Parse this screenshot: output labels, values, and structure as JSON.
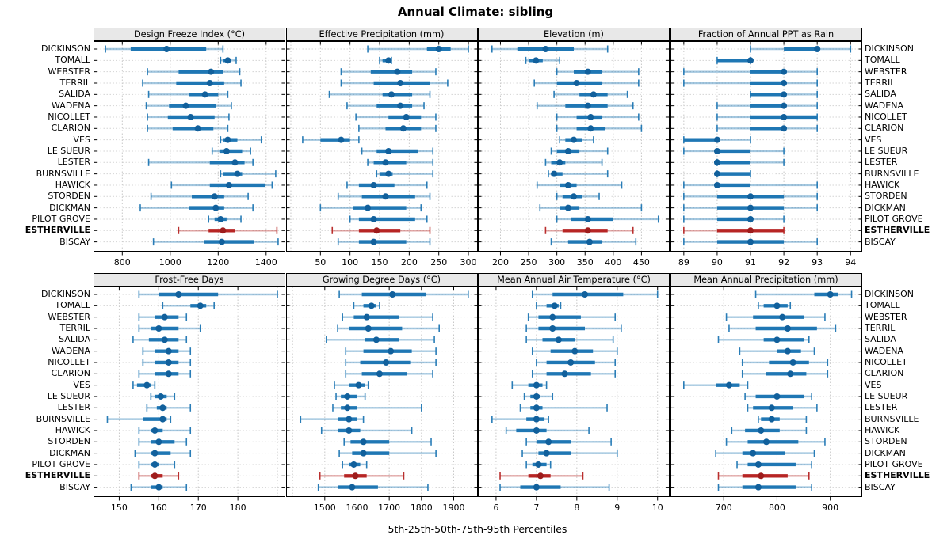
{
  "title": "Annual Climate: sibling",
  "caption": "5th-25th-50th-75th-95th Percentiles",
  "colors": {
    "blue": "#1f77b4",
    "blue_dot": "#11609c",
    "red": "#b72524",
    "red_dot": "#9e1c1c",
    "header_bg": "#e8e8e8",
    "grid": "#c8c8c8",
    "frame": "#000000"
  },
  "stations": [
    "DICKINSON",
    "TOMALL",
    "WEBSTER",
    "TERRIL",
    "SALIDA",
    "WADENA",
    "NICOLLET",
    "CLARION",
    "VES",
    "LE SUEUR",
    "LESTER",
    "BURNSVILLE",
    "HAWICK",
    "STORDEN",
    "DICKMAN",
    "PILOT GROVE",
    "ESTHERVILLE",
    "BISCAY"
  ],
  "highlight_station": "ESTHERVILLE",
  "highlight_index": 16,
  "chart_data": {
    "type": "scatter",
    "subtype": "percentile-interval-dotplot",
    "percentiles": [
      5,
      25,
      50,
      75,
      95
    ],
    "grid": "dotted",
    "legend_position": "none",
    "panels": [
      {
        "title": "Design Freeze Index (°C)",
        "ticks": [
          800,
          1000,
          1200,
          1400
        ],
        "grid_extra": [],
        "xlim": [
          680,
          1480
        ],
        "values": [
          [
            730,
            835,
            985,
            1150,
            1220
          ],
          [
            1210,
            1220,
            1240,
            1255,
            1275
          ],
          [
            905,
            1035,
            1170,
            1220,
            1290
          ],
          [
            885,
            1025,
            1165,
            1225,
            1295
          ],
          [
            910,
            1080,
            1145,
            1200,
            1240
          ],
          [
            900,
            995,
            1065,
            1190,
            1255
          ],
          [
            905,
            990,
            1085,
            1185,
            1245
          ],
          [
            905,
            1010,
            1115,
            1180,
            1240
          ],
          [
            1210,
            1220,
            1240,
            1280,
            1380
          ],
          [
            1175,
            1205,
            1235,
            1300,
            1335
          ],
          [
            910,
            1165,
            1270,
            1310,
            1345
          ],
          [
            1210,
            1220,
            1280,
            1300,
            1440
          ],
          [
            1005,
            1165,
            1245,
            1395,
            1425
          ],
          [
            920,
            1090,
            1185,
            1225,
            1325
          ],
          [
            875,
            1080,
            1190,
            1225,
            1345
          ],
          [
            1160,
            1185,
            1210,
            1235,
            1295
          ],
          [
            1035,
            1160,
            1220,
            1270,
            1445
          ],
          [
            930,
            1140,
            1215,
            1350,
            1450
          ]
        ]
      },
      {
        "title": "Effective Precipitation (mm)",
        "ticks": [
          50,
          100,
          150,
          200,
          250,
          300
        ],
        "grid_extra": [
          0
        ],
        "xlim": [
          -8,
          316
        ],
        "values": [
          [
            130,
            230,
            250,
            270,
            300
          ],
          [
            150,
            155,
            165,
            168,
            170
          ],
          [
            85,
            135,
            180,
            205,
            245
          ],
          [
            85,
            140,
            185,
            235,
            265
          ],
          [
            65,
            155,
            170,
            205,
            235
          ],
          [
            95,
            145,
            185,
            205,
            225
          ],
          [
            110,
            165,
            195,
            220,
            245
          ],
          [
            115,
            160,
            190,
            220,
            245
          ],
          [
            20,
            50,
            85,
            100,
            115
          ],
          [
            120,
            145,
            165,
            215,
            240
          ],
          [
            130,
            140,
            160,
            195,
            240
          ],
          [
            145,
            150,
            165,
            172,
            240
          ],
          [
            95,
            115,
            140,
            175,
            230
          ],
          [
            80,
            120,
            160,
            210,
            235
          ],
          [
            50,
            105,
            130,
            195,
            220
          ],
          [
            100,
            115,
            140,
            210,
            230
          ],
          [
            70,
            115,
            145,
            185,
            235
          ],
          [
            80,
            115,
            140,
            195,
            235
          ]
        ]
      },
      {
        "title": "Elevation (m)",
        "ticks": [
          200,
          250,
          300,
          350,
          400,
          450
        ],
        "grid_extra": [],
        "xlim": [
          160,
          500
        ],
        "values": [
          [
            185,
            230,
            280,
            330,
            390
          ],
          [
            245,
            250,
            263,
            275,
            305
          ],
          [
            300,
            330,
            355,
            380,
            445
          ],
          [
            260,
            300,
            335,
            380,
            445
          ],
          [
            295,
            340,
            365,
            390,
            425
          ],
          [
            265,
            315,
            355,
            390,
            435
          ],
          [
            300,
            335,
            360,
            380,
            445
          ],
          [
            300,
            335,
            360,
            385,
            450
          ],
          [
            305,
            315,
            330,
            345,
            365
          ],
          [
            290,
            300,
            320,
            340,
            390
          ],
          [
            280,
            290,
            305,
            315,
            380
          ],
          [
            285,
            290,
            295,
            310,
            390
          ],
          [
            265,
            305,
            320,
            335,
            415
          ],
          [
            300,
            310,
            330,
            345,
            375
          ],
          [
            270,
            305,
            320,
            340,
            450
          ],
          [
            300,
            325,
            355,
            400,
            480
          ],
          [
            280,
            310,
            355,
            390,
            435
          ],
          [
            290,
            320,
            358,
            380,
            440
          ]
        ]
      },
      {
        "title": "Fraction of Annual PPT as Rain",
        "ticks": [
          89,
          90,
          91,
          92,
          93,
          94
        ],
        "grid_extra": [],
        "xlim": [
          88.6,
          94.35
        ],
        "values": [
          [
            91,
            92,
            93,
            93,
            94
          ],
          [
            90,
            90,
            91,
            91,
            91
          ],
          [
            89,
            91,
            92,
            92,
            93
          ],
          [
            89,
            91,
            92,
            92,
            93
          ],
          [
            91,
            91,
            92,
            92,
            93
          ],
          [
            90,
            91,
            92,
            92,
            93
          ],
          [
            90,
            91,
            92,
            93,
            93
          ],
          [
            90,
            91,
            92,
            92,
            93
          ],
          [
            89,
            89,
            90,
            90,
            91
          ],
          [
            89,
            90,
            90,
            91,
            92
          ],
          [
            90,
            90,
            90,
            91,
            92
          ],
          [
            90,
            90,
            90,
            91,
            91
          ],
          [
            89,
            90,
            90,
            91,
            93
          ],
          [
            89,
            90,
            91,
            92,
            93
          ],
          [
            89,
            90,
            91,
            92,
            93
          ],
          [
            89,
            90,
            91,
            91,
            92
          ],
          [
            89,
            90,
            91,
            92,
            92
          ],
          [
            89,
            90,
            91,
            92,
            93
          ]
        ]
      },
      {
        "title": "Frost-Free Days",
        "ticks": [
          150,
          160,
          170,
          180
        ],
        "grid_extra": [
          190
        ],
        "xlim": [
          143.5,
          192
        ],
        "values": [
          [
            155,
            160,
            165,
            175,
            190
          ],
          [
            161,
            168,
            170.5,
            172,
            174
          ],
          [
            155,
            159,
            161.5,
            165,
            167
          ],
          [
            155,
            158,
            160,
            165,
            170.5
          ],
          [
            153.5,
            157.5,
            161.5,
            165,
            167
          ],
          [
            156,
            159,
            162.5,
            165,
            168
          ],
          [
            156,
            159,
            162.5,
            165,
            168
          ],
          [
            155,
            159,
            162.5,
            165,
            168
          ],
          [
            153.5,
            154.5,
            157,
            158,
            159
          ],
          [
            158,
            159,
            160.5,
            162,
            164
          ],
          [
            157,
            159.5,
            161,
            162,
            168
          ],
          [
            147,
            156,
            161,
            162,
            163
          ],
          [
            155,
            158,
            159,
            161,
            168
          ],
          [
            155,
            158,
            160,
            164,
            167
          ],
          [
            154,
            158,
            159,
            163,
            168
          ],
          [
            155,
            158,
            159,
            160,
            164
          ],
          [
            155,
            158,
            159,
            161,
            165
          ],
          [
            153,
            158,
            160,
            161,
            167
          ]
        ]
      },
      {
        "title": "Growing Degree Days (°C)",
        "ticks": [
          1500,
          1600,
          1700,
          1800,
          1900
        ],
        "grid_extra": [
          1400
        ],
        "xlim": [
          1380,
          1975
        ],
        "values": [
          [
            1545,
            1615,
            1710,
            1815,
            1945
          ],
          [
            1590,
            1620,
            1645,
            1660,
            1670
          ],
          [
            1555,
            1590,
            1630,
            1730,
            1835
          ],
          [
            1540,
            1575,
            1635,
            1740,
            1855
          ],
          [
            1505,
            1625,
            1660,
            1730,
            1840
          ],
          [
            1565,
            1620,
            1705,
            1770,
            1845
          ],
          [
            1565,
            1610,
            1690,
            1765,
            1845
          ],
          [
            1565,
            1615,
            1670,
            1755,
            1835
          ],
          [
            1530,
            1575,
            1605,
            1625,
            1635
          ],
          [
            1535,
            1550,
            1570,
            1600,
            1625
          ],
          [
            1525,
            1550,
            1570,
            1600,
            1800
          ],
          [
            1425,
            1540,
            1575,
            1600,
            1620
          ],
          [
            1490,
            1540,
            1575,
            1610,
            1770
          ],
          [
            1560,
            1580,
            1620,
            1700,
            1830
          ],
          [
            1545,
            1585,
            1620,
            1700,
            1845
          ],
          [
            1555,
            1575,
            1590,
            1610,
            1630
          ],
          [
            1485,
            1560,
            1595,
            1630,
            1745
          ],
          [
            1480,
            1540,
            1585,
            1665,
            1820
          ]
        ]
      },
      {
        "title": "Mean Annual Air Temperature (°C)",
        "ticks": [
          6,
          7,
          8,
          9,
          10
        ],
        "grid_extra": [],
        "xlim": [
          5.55,
          10.3
        ],
        "values": [
          [
            6.9,
            7.4,
            8.2,
            9.15,
            10.0
          ],
          [
            7.0,
            7.25,
            7.45,
            7.55,
            7.6
          ],
          [
            6.8,
            7.05,
            7.4,
            8.1,
            8.95
          ],
          [
            6.75,
            7.05,
            7.4,
            8.2,
            9.1
          ],
          [
            6.75,
            7.15,
            7.55,
            7.95,
            8.9
          ],
          [
            6.9,
            7.35,
            7.95,
            8.4,
            9.0
          ],
          [
            7.0,
            7.25,
            7.85,
            8.45,
            8.95
          ],
          [
            6.9,
            7.25,
            7.7,
            8.35,
            8.95
          ],
          [
            6.4,
            6.8,
            7.0,
            7.15,
            7.25
          ],
          [
            6.7,
            6.85,
            7.0,
            7.1,
            7.4
          ],
          [
            6.6,
            6.85,
            7.0,
            7.15,
            8.75
          ],
          [
            5.9,
            6.75,
            7.0,
            7.2,
            7.3
          ],
          [
            6.25,
            6.5,
            7.0,
            7.25,
            8.3
          ],
          [
            6.75,
            7.0,
            7.3,
            7.85,
            8.85
          ],
          [
            6.65,
            7.05,
            7.25,
            7.85,
            9.0
          ],
          [
            6.75,
            6.9,
            7.05,
            7.25,
            7.35
          ],
          [
            6.1,
            6.8,
            7.1,
            7.35,
            8.15
          ],
          [
            6.1,
            6.6,
            7.0,
            7.6,
            8.8
          ]
        ]
      },
      {
        "title": "Mean Annual Precipitation (mm)",
        "ticks": [
          700,
          800,
          900
        ],
        "grid_extra": [],
        "xlim": [
          600,
          960
        ],
        "values": [
          [
            760,
            870,
            900,
            915,
            940
          ],
          [
            765,
            775,
            800,
            820,
            825
          ],
          [
            705,
            755,
            810,
            850,
            890
          ],
          [
            710,
            760,
            820,
            875,
            910
          ],
          [
            690,
            775,
            800,
            850,
            860
          ],
          [
            730,
            800,
            820,
            845,
            870
          ],
          [
            735,
            785,
            830,
            860,
            895
          ],
          [
            735,
            780,
            825,
            855,
            895
          ],
          [
            625,
            685,
            710,
            730,
            745
          ],
          [
            740,
            760,
            800,
            850,
            865
          ],
          [
            745,
            755,
            790,
            830,
            875
          ],
          [
            765,
            770,
            790,
            805,
            855
          ],
          [
            715,
            740,
            770,
            805,
            855
          ],
          [
            705,
            745,
            780,
            840,
            890
          ],
          [
            685,
            735,
            755,
            815,
            870
          ],
          [
            725,
            745,
            765,
            835,
            865
          ],
          [
            690,
            735,
            770,
            820,
            860
          ],
          [
            690,
            735,
            765,
            835,
            865
          ]
        ]
      }
    ]
  }
}
